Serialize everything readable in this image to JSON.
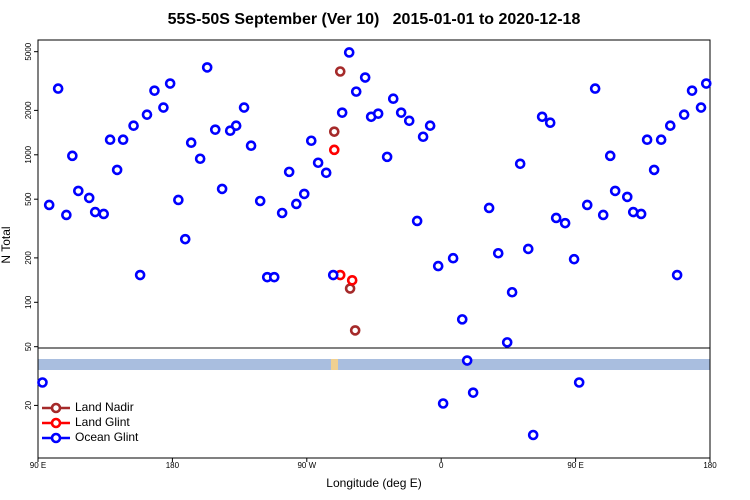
{
  "chart_data": {
    "type": "scatter",
    "title": "55S-50S September (Ver 10)   2015-01-01 to 2020-12-18",
    "xlabel": "Longitude (deg E)",
    "ylabel": "N Total",
    "xlim": [
      -270,
      180
    ],
    "ylim": [
      8.8,
      6000
    ],
    "log_y": true,
    "legend": "lower left",
    "xticks": [
      {
        "value": -270,
        "label": "90 E"
      },
      {
        "value": -180,
        "label": "180"
      },
      {
        "value": -90,
        "label": "90 W"
      },
      0,
      {
        "value": 90,
        "label": "90 E"
      },
      180
    ],
    "yticks": [
      20,
      50,
      100,
      200,
      500,
      1000,
      2000,
      5000
    ],
    "series": [
      {
        "name": "Land Nadir",
        "color": "#a52a2a",
        "x": [
          -67.6,
          -71.6,
          -61,
          -57.6
        ],
        "values": [
          3670,
          1435,
          124,
          64.5
        ]
      },
      {
        "name": "Land Glint",
        "color": "#ff0000",
        "x": [
          -71.6,
          -67.6,
          -59.6
        ],
        "values": [
          1080,
          153,
          141
        ]
      },
      {
        "name": "Ocean Glint",
        "color": "#0000ff",
        "x": [
          -267,
          -262.5,
          -256.5,
          -251,
          -247,
          -243,
          -235.7,
          -231.7,
          -226,
          -221.7,
          -217,
          -213,
          -206,
          -201.6,
          -197,
          -192,
          -186,
          -181.5,
          -176,
          -171.4,
          -167.4,
          -161.4,
          -156.7,
          -151.3,
          -146.7,
          -141.3,
          -137.3,
          -132,
          -127.3,
          -121.2,
          -116.5,
          -111.8,
          -106.5,
          -101.8,
          -97,
          -91.7,
          -87,
          -82.4,
          -77,
          -72.3,
          -66.3,
          -61.6,
          -56.9,
          -50.9,
          -46.9,
          -42.2,
          -36.2,
          -32.1,
          -26.8,
          -21.4,
          -16.1,
          -12.1,
          -7.4,
          -2,
          1.3,
          8,
          14.1,
          17.4,
          21.4,
          32.1,
          38.2,
          44.2,
          47.5,
          52.9,
          58.3,
          61.6,
          67.6,
          73,
          77,
          83,
          89,
          92.4,
          97.8,
          103.1,
          108.5,
          113.2,
          116.5,
          124.6,
          128.6,
          133.9,
          137.9,
          142.6,
          147.3,
          153.4,
          158,
          162.7,
          168,
          174,
          177.5
        ],
        "values": [
          28.6,
          457,
          2810,
          391,
          984,
          569,
          510,
          409,
          397,
          1265,
          790,
          1265,
          1575,
          153,
          1870,
          2720,
          2090,
          3040,
          494,
          268,
          1207,
          940,
          3910,
          1480,
          587,
          1456,
          1575,
          2090,
          1152,
          486,
          148,
          148,
          403,
          766,
          464,
          543,
          1245,
          883,
          755,
          153,
          1930,
          4940,
          2680,
          3340,
          1810,
          1900,
          968,
          2400,
          1930,
          1700,
          356,
          1325,
          1575,
          176,
          20.6,
          199,
          76.6,
          40.3,
          24.4,
          436,
          215,
          53.5,
          117,
          869,
          230,
          12.6,
          1810,
          1650,
          373,
          344,
          196,
          28.6,
          457,
          2810,
          391,
          984,
          569,
          518,
          409,
          397,
          1265,
          790,
          1265,
          1575,
          153,
          1870,
          2720,
          2090,
          3040
        ]
      }
    ]
  }
}
